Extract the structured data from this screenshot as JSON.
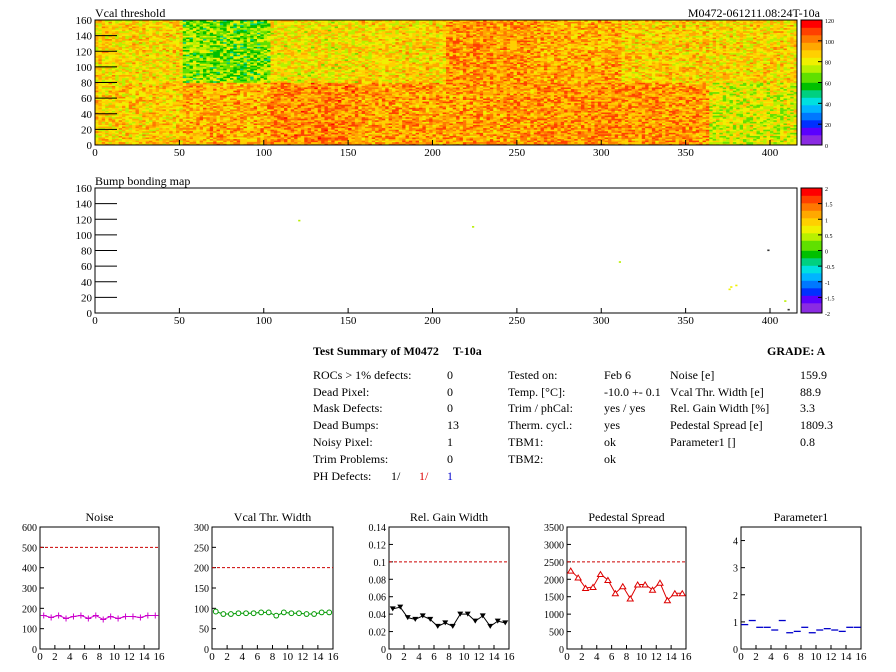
{
  "module_id": "M0472-061211.08:24T-10a",
  "colors": {
    "grid_line": "#cc0000",
    "noise": "#cc00cc",
    "vcal": "#009900",
    "gain": "#000000",
    "pedestal": "#dd0000",
    "param1": "#0000cc",
    "ph_red": "#dd0000",
    "ph_blue": "#0000cc"
  },
  "summary": {
    "title": "Test Summary of M0472",
    "subtitle": "T-10a",
    "grade": "GRADE:  A",
    "defects": [
      {
        "label": "ROCs > 1% defects:",
        "value": "0"
      },
      {
        "label": "Dead Pixel:",
        "value": "0"
      },
      {
        "label": "Mask Defects:",
        "value": "0"
      },
      {
        "label": "Dead Bumps:",
        "value": "13"
      },
      {
        "label": "Noisy Pixel:",
        "value": "1"
      },
      {
        "label": "Trim Problems:",
        "value": "0"
      }
    ],
    "ph_defects": {
      "label": "PH Defects:",
      "v1": "1/",
      "v2": "1/",
      "v3": "1"
    },
    "conditions": [
      {
        "label": "Tested on:",
        "value": "Feb 6"
      },
      {
        "label": "Temp. [°C]:",
        "value": "-10.0 +- 0.1"
      },
      {
        "label": "Trim / phCal:",
        "value": "yes / yes"
      },
      {
        "label": "Therm. cycl.:",
        "value": "yes"
      },
      {
        "label": "TBM1:",
        "value": "ok"
      },
      {
        "label": "TBM2:",
        "value": "ok"
      }
    ],
    "results": [
      {
        "label": "Noise [e]",
        "value": "159.9"
      },
      {
        "label": "Vcal Thr. Width [e]",
        "value": "88.9"
      },
      {
        "label": "Rel. Gain Width [%]",
        "value": "3.3"
      },
      {
        "label": "Pedestal Spread [e]",
        "value": "1809.3"
      },
      {
        "label": "Parameter1 []",
        "value": "0.8"
      }
    ]
  },
  "chart_data": [
    {
      "type": "heatmap",
      "title": "Vcal threshold",
      "x_range": [
        0,
        416
      ],
      "y_range": [
        0,
        160
      ],
      "x_ticks": [
        0,
        50,
        100,
        150,
        200,
        250,
        300,
        350,
        400
      ],
      "y_ticks": [
        0,
        20,
        40,
        60,
        80,
        100,
        120,
        140,
        160
      ],
      "z_range": [
        0,
        120
      ],
      "z_ticks": [
        0,
        20,
        40,
        60,
        80,
        100,
        120
      ],
      "roc_grid": "8x2",
      "roc_mean_threshold": {
        "top": [
          84,
          66,
          82,
          84,
          96,
          92,
          86,
          84
        ],
        "bottom": [
          86,
          92,
          98,
          94,
          95,
          97,
          96,
          76
        ]
      }
    },
    {
      "type": "heatmap",
      "title": "Bump bonding map",
      "x_range": [
        0,
        416
      ],
      "y_range": [
        0,
        160
      ],
      "x_ticks": [
        0,
        50,
        100,
        150,
        200,
        250,
        300,
        350,
        400
      ],
      "y_ticks": [
        0,
        20,
        40,
        60,
        80,
        100,
        120,
        140,
        160
      ],
      "z_range": [
        -2,
        2
      ],
      "z_ticks": [
        -2,
        -1.5,
        -1,
        -0.5,
        0,
        0.5,
        1,
        1.5,
        2
      ],
      "points": [
        {
          "x": 121,
          "y": 118,
          "z": 0.4
        },
        {
          "x": 224,
          "y": 110,
          "z": 0.4
        },
        {
          "x": 311,
          "y": 65,
          "z": 0.3
        },
        {
          "x": 399,
          "y": 80,
          "z": -2
        },
        {
          "x": 377,
          "y": 33,
          "z": 0.6
        },
        {
          "x": 380,
          "y": 35,
          "z": 0.5
        },
        {
          "x": 376,
          "y": 30,
          "z": 0.5
        },
        {
          "x": 409,
          "y": 15,
          "z": 0.3
        },
        {
          "x": 411,
          "y": 4,
          "z": -2
        }
      ]
    },
    {
      "type": "line",
      "title": "Noise",
      "marker": "plus",
      "x_range": [
        0,
        16
      ],
      "y_range": [
        0,
        600
      ],
      "y_ticks": [
        0,
        100,
        200,
        300,
        400,
        500,
        600
      ],
      "reference_line": 500,
      "x": [
        0.5,
        1.5,
        2.5,
        3.5,
        4.5,
        5.5,
        6.5,
        7.5,
        8.5,
        9.5,
        10.5,
        11.5,
        12.5,
        13.5,
        14.5,
        15.5
      ],
      "values": [
        165,
        155,
        165,
        150,
        160,
        165,
        150,
        165,
        145,
        160,
        150,
        160,
        160,
        155,
        165,
        165
      ]
    },
    {
      "type": "line",
      "title": "Vcal Thr. Width",
      "marker": "circle",
      "x_range": [
        0,
        16
      ],
      "y_range": [
        0,
        300
      ],
      "y_ticks": [
        0,
        50,
        100,
        150,
        200,
        250,
        300
      ],
      "reference_line": 200,
      "x": [
        0.5,
        1.5,
        2.5,
        3.5,
        4.5,
        5.5,
        6.5,
        7.5,
        8.5,
        9.5,
        10.5,
        11.5,
        12.5,
        13.5,
        14.5,
        15.5
      ],
      "values": [
        92,
        86,
        86,
        88,
        88,
        88,
        90,
        90,
        82,
        90,
        88,
        88,
        86,
        86,
        90,
        90
      ]
    },
    {
      "type": "line",
      "title": "Rel. Gain Width",
      "marker": "triangle-down",
      "x_range": [
        0,
        16
      ],
      "y_range": [
        0,
        0.14
      ],
      "y_ticks": [
        0,
        0.02,
        0.04,
        0.06,
        0.08,
        0.1,
        0.12,
        0.14
      ],
      "reference_line": 0.1,
      "x": [
        0.5,
        1.5,
        2.5,
        3.5,
        4.5,
        5.5,
        6.5,
        7.5,
        8.5,
        9.5,
        10.5,
        11.5,
        12.5,
        13.5,
        14.5,
        15.5
      ],
      "values": [
        0.046,
        0.048,
        0.036,
        0.034,
        0.038,
        0.034,
        0.026,
        0.03,
        0.026,
        0.04,
        0.04,
        0.032,
        0.038,
        0.026,
        0.032,
        0.03
      ]
    },
    {
      "type": "line",
      "title": "Pedestal Spread",
      "marker": "triangle-up",
      "x_range": [
        0,
        16
      ],
      "y_range": [
        0,
        3500
      ],
      "y_ticks": [
        0,
        500,
        1000,
        1500,
        2000,
        2500,
        3000,
        3500
      ],
      "reference_line": 2500,
      "x": [
        0.5,
        1.5,
        2.5,
        3.5,
        4.5,
        5.5,
        6.5,
        7.5,
        8.5,
        9.5,
        10.5,
        11.5,
        12.5,
        13.5,
        14.5,
        15.5
      ],
      "values": [
        2250,
        2050,
        1750,
        1780,
        2150,
        1980,
        1600,
        1800,
        1450,
        1850,
        1850,
        1700,
        1900,
        1400,
        1600,
        1600
      ]
    },
    {
      "type": "scatter",
      "title": "Parameter1",
      "marker": "dash",
      "x_range": [
        0,
        16
      ],
      "y_range": [
        0,
        4.5
      ],
      "y_ticks": [
        0,
        1,
        2,
        3,
        4
      ],
      "x": [
        0.5,
        1.5,
        2.5,
        3.5,
        4.5,
        5.5,
        6.5,
        7.5,
        8.5,
        9.5,
        10.5,
        11.5,
        12.5,
        13.5,
        14.5,
        15.5
      ],
      "values": [
        0.9,
        1.05,
        0.8,
        0.8,
        0.7,
        1.05,
        0.6,
        0.65,
        0.8,
        0.6,
        0.7,
        0.75,
        0.7,
        0.65,
        0.8,
        0.8
      ]
    }
  ],
  "mini_x_ticks": [
    0,
    2,
    4,
    6,
    8,
    10,
    12,
    14,
    16
  ]
}
